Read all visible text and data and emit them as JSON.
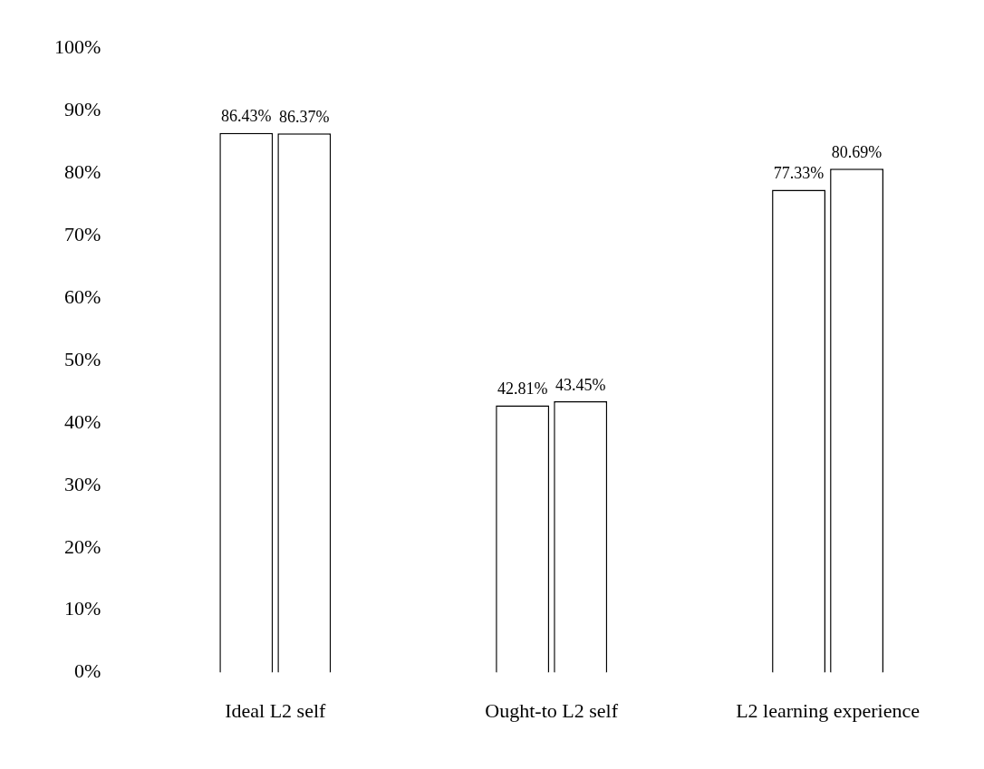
{
  "chart_data": {
    "type": "bar",
    "categories": [
      "Ideal L2 self",
      "Ought-to L2 self",
      "L2 learning experience"
    ],
    "series": [
      {
        "color": "#ffffff",
        "values": [
          86.43,
          42.81,
          77.33
        ],
        "value_labels": [
          "86.43%",
          "42.81%",
          "77.33%"
        ]
      },
      {
        "color": "#ffffff",
        "values": [
          86.37,
          43.45,
          80.69
        ],
        "value_labels": [
          "86.37%",
          "43.45%",
          "80.69%"
        ]
      }
    ],
    "ylim": [
      0,
      100
    ],
    "yticks": [
      {
        "value": 0,
        "label": "0%"
      },
      {
        "value": 10,
        "label": "10%"
      },
      {
        "value": 20,
        "label": "20%"
      },
      {
        "value": 30,
        "label": "30%"
      },
      {
        "value": 40,
        "label": "40%"
      },
      {
        "value": 50,
        "label": "50%"
      },
      {
        "value": 60,
        "label": "60%"
      },
      {
        "value": 70,
        "label": "70%"
      },
      {
        "value": 80,
        "label": "80%"
      },
      {
        "value": 90,
        "label": "90%"
      },
      {
        "value": 100,
        "label": "100%"
      }
    ],
    "grid": false,
    "legend": false
  }
}
